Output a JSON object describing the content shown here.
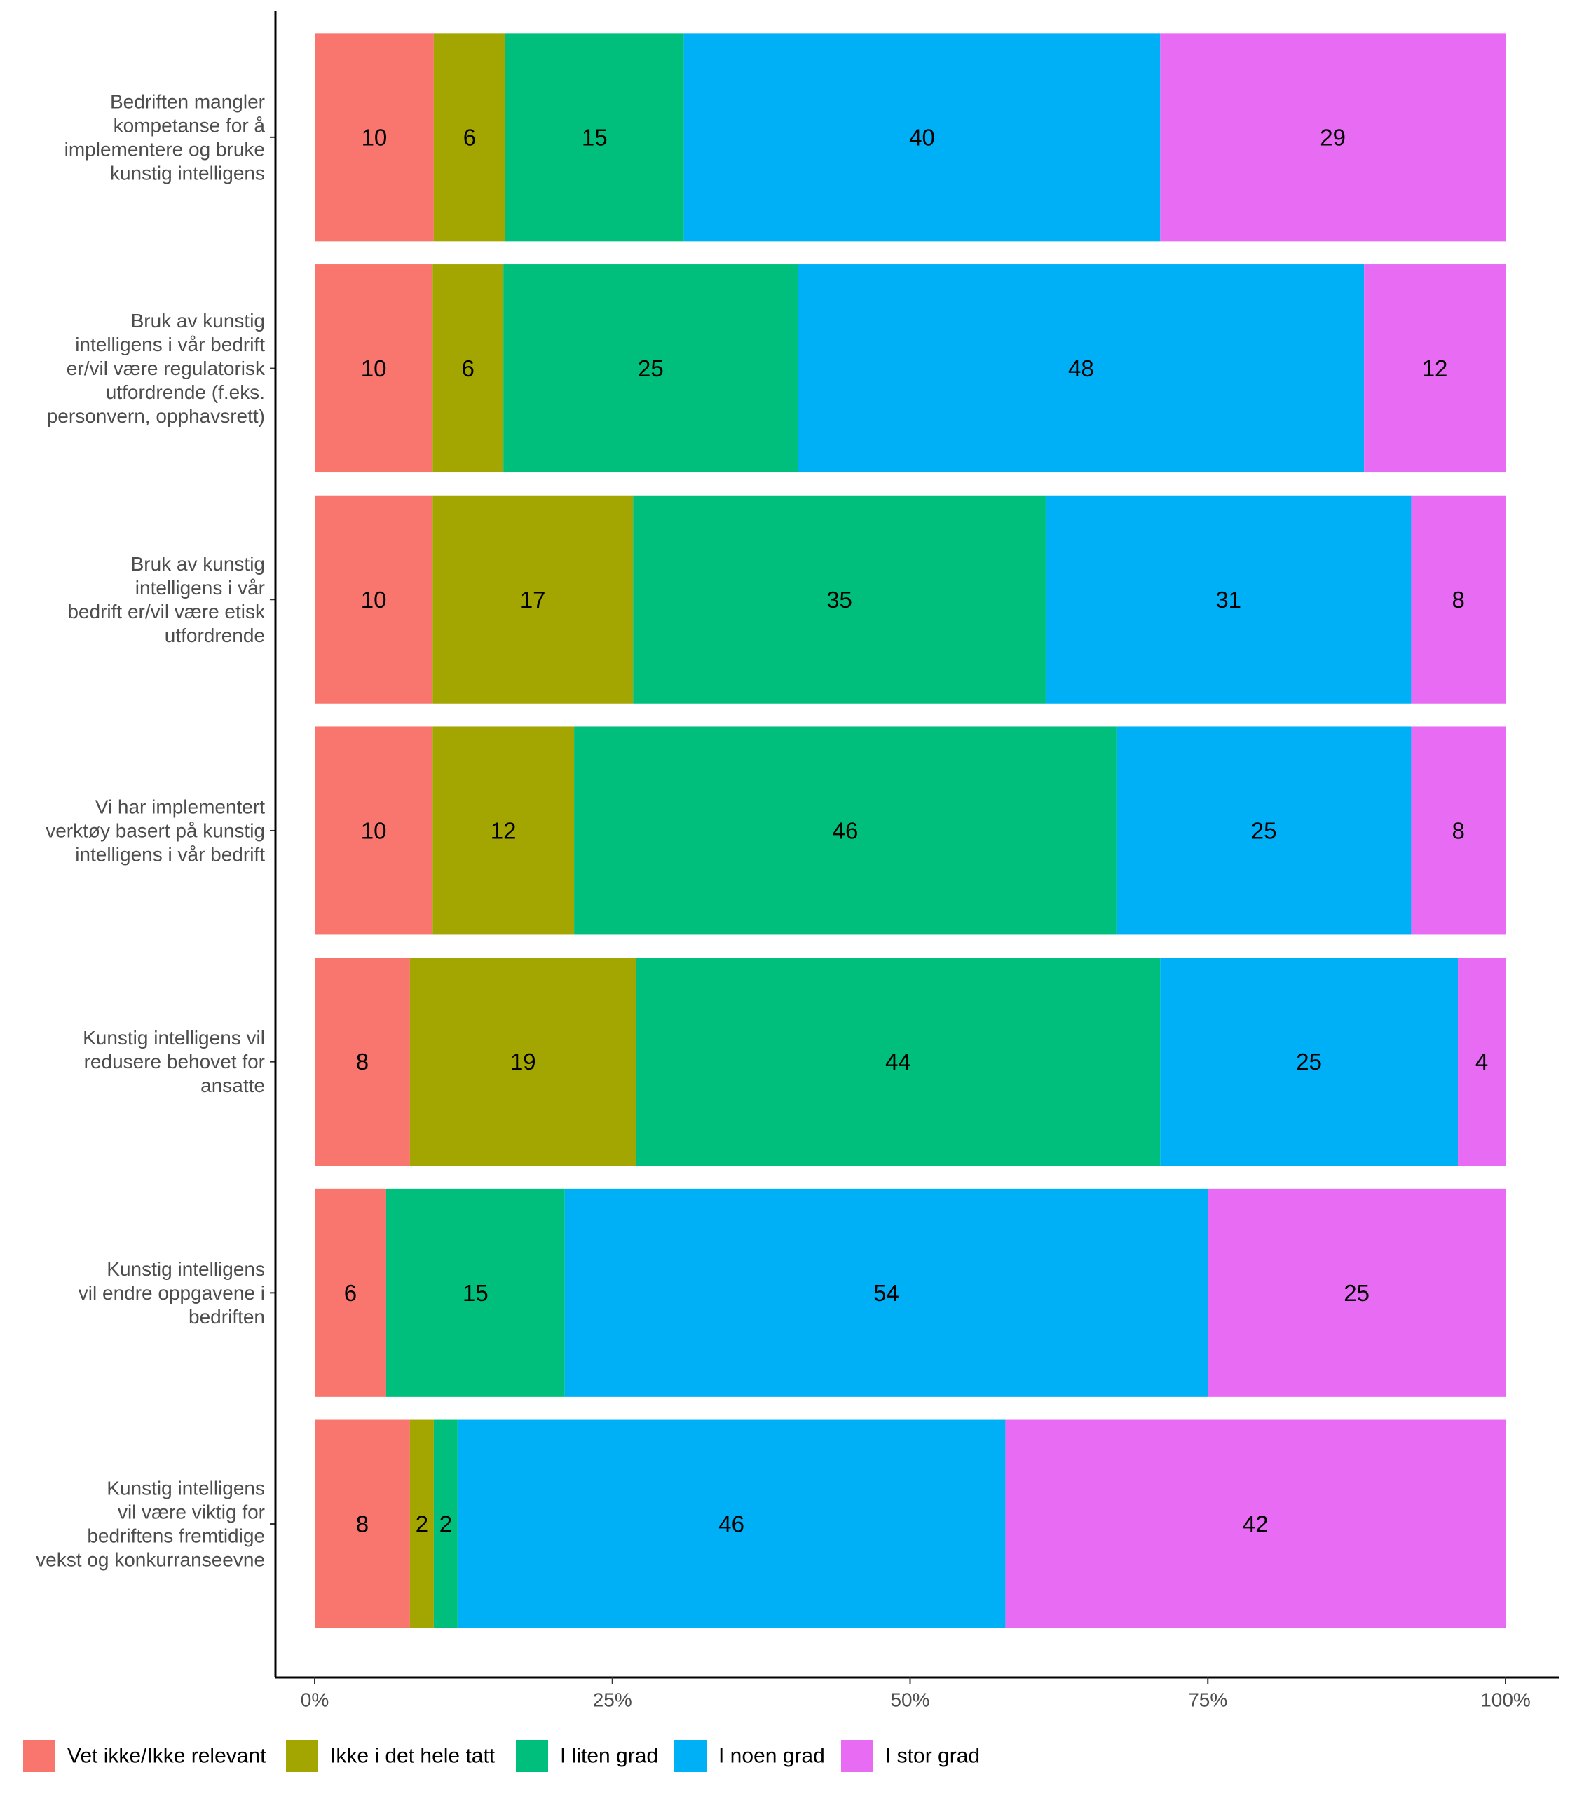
{
  "chart_data": {
    "type": "bar",
    "orientation": "horizontal",
    "stacked": true,
    "normalized": true,
    "title": "",
    "xlabel": "",
    "ylabel": "",
    "xlim": [
      0,
      100
    ],
    "x_ticks": [
      "0%",
      "25%",
      "50%",
      "75%",
      "100%"
    ],
    "grid": false,
    "legend_position": "bottom",
    "categories": [
      "Bedriften mangler kompetanse for å implementere og bruke kunstig intelligens",
      "Bruk av kunstig intelligens i vår bedrift er/vil være regulatorisk utfordrende (f.eks. personvern, opphavsrett)",
      "Bruk av kunstig intelligens i vår bedrift er/vil være etisk utfordrende",
      "Vi har implementert verktøy basert på kunstig intelligens i vår bedrift",
      "Kunstig intelligens vil redusere behovet for ansatte",
      "Kunstig intelligens vil endre oppgavene i bedriften",
      "Kunstig intelligens vil være viktig for bedriftens fremtidige vekst og konkurranseevne"
    ],
    "category_lines": [
      [
        "Bedriften mangler",
        "kompetanse for å",
        "implementere og bruke",
        "kunstig intelligens"
      ],
      [
        "Bruk av kunstig",
        "intelligens i vår bedrift",
        "er/vil være regulatorisk",
        "utfordrende (f.eks.",
        "personvern, opphavsrett)"
      ],
      [
        "Bruk av kunstig",
        "intelligens i vår",
        "bedrift er/vil være etisk",
        "utfordrende"
      ],
      [
        "Vi har implementert",
        "verktøy basert på kunstig",
        "intelligens i vår bedrift"
      ],
      [
        "Kunstig intelligens vil",
        "redusere behovet for",
        "ansatte"
      ],
      [
        "Kunstig intelligens",
        "vil endre oppgavene i",
        "bedriften"
      ],
      [
        "Kunstig intelligens",
        "vil være viktig for",
        "bedriftens fremtidige",
        "vekst og konkurranseevne"
      ]
    ],
    "series": [
      {
        "name": "Vet ikke/Ikke relevant",
        "color": "#F8766D",
        "values": [
          10,
          10,
          10,
          10,
          8,
          6,
          8
        ]
      },
      {
        "name": "Ikke i det hele tatt",
        "color": "#A3A500",
        "values": [
          6,
          6,
          17,
          12,
          19,
          0,
          2
        ]
      },
      {
        "name": "I liten grad",
        "color": "#00BF7D",
        "values": [
          15,
          25,
          35,
          46,
          44,
          15,
          2
        ]
      },
      {
        "name": "I noen grad",
        "color": "#00B0F6",
        "values": [
          40,
          48,
          31,
          25,
          25,
          54,
          46
        ]
      },
      {
        "name": "I stor grad",
        "color": "#E76BF3",
        "values": [
          29,
          12,
          8,
          8,
          4,
          25,
          42
        ]
      }
    ]
  }
}
